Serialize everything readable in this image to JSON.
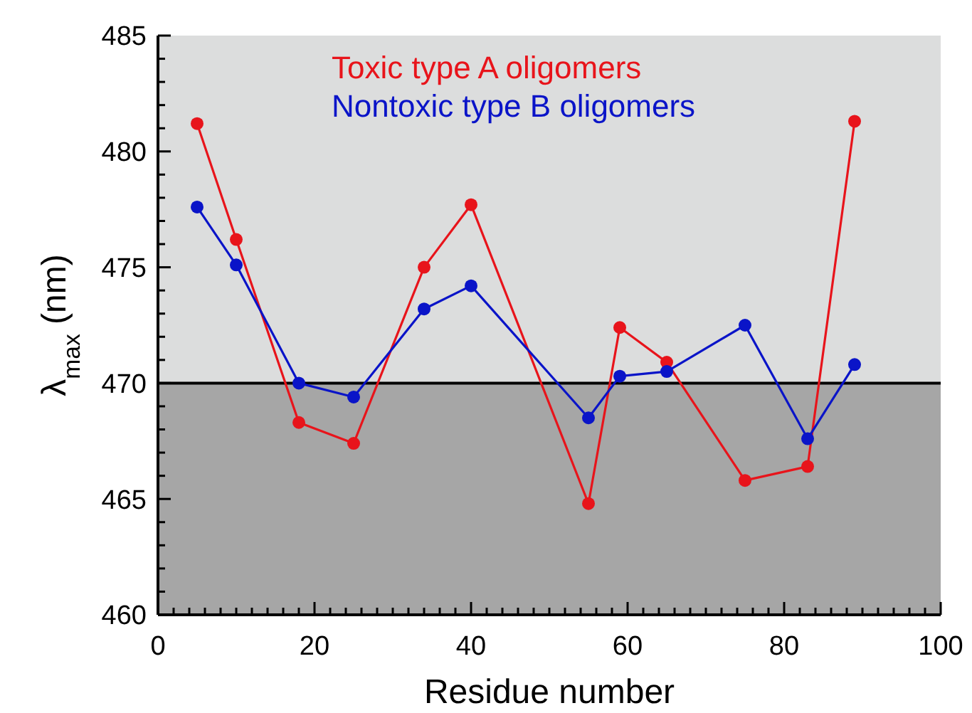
{
  "chart_data": {
    "type": "line",
    "xlabel": "Residue number",
    "ylabel": "λ$_{max}$ (nm)",
    "xlim": [
      0,
      100
    ],
    "xticks": [
      0,
      {
        "value": 2,
        "label": null
      },
      {
        "value": 4,
        "label": null
      },
      {
        "value": 6,
        "label": null
      },
      {
        "value": 8,
        "label": null
      },
      {
        "value": 10,
        "label": null
      },
      {
        "value": 12,
        "label": null
      },
      {
        "value": 14,
        "label": null
      },
      {
        "value": 16,
        "label": null
      },
      {
        "value": 18,
        "label": null
      },
      20,
      {
        "value": 22,
        "label": null
      },
      {
        "value": 24,
        "label": null
      },
      {
        "value": 26,
        "label": null
      },
      {
        "value": 28,
        "label": null
      },
      {
        "value": 30,
        "label": null
      },
      {
        "value": 32,
        "label": null
      },
      {
        "value": 34,
        "label": null
      },
      {
        "value": 36,
        "label": null
      },
      {
        "value": 38,
        "label": null
      },
      40,
      {
        "value": 42,
        "label": null
      },
      {
        "value": 44,
        "label": null
      },
      {
        "value": 46,
        "label": null
      },
      {
        "value": 48,
        "label": null
      },
      {
        "value": 50,
        "label": null
      },
      {
        "value": 52,
        "label": null
      },
      {
        "value": 54,
        "label": null
      },
      {
        "value": 56,
        "label": null
      },
      {
        "value": 58,
        "label": null
      },
      60,
      {
        "value": 62,
        "label": null
      },
      {
        "value": 64,
        "label": null
      },
      {
        "value": 66,
        "label": null
      },
      {
        "value": 68,
        "label": null
      },
      {
        "value": 70,
        "label": null
      },
      {
        "value": 72,
        "label": null
      },
      {
        "value": 74,
        "label": null
      },
      {
        "value": 76,
        "label": null
      },
      {
        "value": 78,
        "label": null
      },
      80,
      {
        "value": 82,
        "label": null
      },
      {
        "value": 84,
        "label": null
      },
      {
        "value": 86,
        "label": null
      },
      {
        "value": 88,
        "label": null
      },
      {
        "value": 90,
        "label": null
      },
      {
        "value": 92,
        "label": null
      },
      {
        "value": 94,
        "label": null
      },
      {
        "value": 96,
        "label": null
      },
      {
        "value": 98,
        "label": null
      },
      100
    ],
    "ylim": [
      460,
      485
    ],
    "yticks": [
      460,
      {
        "value": 461,
        "label": null
      },
      {
        "value": 462,
        "label": null
      },
      {
        "value": 463,
        "label": null
      },
      {
        "value": 464,
        "label": null
      },
      465,
      {
        "value": 466,
        "label": null
      },
      {
        "value": 467,
        "label": null
      },
      {
        "value": 468,
        "label": null
      },
      {
        "value": 469,
        "label": null
      },
      470,
      {
        "value": 471,
        "label": null
      },
      {
        "value": 472,
        "label": null
      },
      {
        "value": 473,
        "label": null
      },
      {
        "value": 474,
        "label": null
      },
      475,
      {
        "value": 476,
        "label": null
      },
      {
        "value": 477,
        "label": null
      },
      {
        "value": 478,
        "label": null
      },
      {
        "value": 479,
        "label": null
      },
      480,
      {
        "value": 481,
        "label": null
      },
      {
        "value": 482,
        "label": null
      },
      {
        "value": 483,
        "label": null
      },
      {
        "value": 484,
        "label": null
      },
      485
    ],
    "x": [
      5,
      10,
      18,
      25,
      34,
      40,
      55,
      59,
      65,
      75,
      83,
      89
    ],
    "series": [
      {
        "name": "Toxic type A oligomers",
        "color": "#e8141b",
        "values": [
          481.2,
          476.2,
          468.3,
          467.4,
          475.0,
          477.7,
          464.8,
          472.4,
          470.9,
          465.8,
          466.4,
          481.3
        ]
      },
      {
        "name": "Nontoxic type B oligomers",
        "color": "#0a14c8",
        "values": [
          477.6,
          475.1,
          470.0,
          469.4,
          473.2,
          474.2,
          468.5,
          470.3,
          470.5,
          472.5,
          467.6,
          470.8
        ]
      }
    ],
    "bands": [
      {
        "axis": "y",
        "from": 470,
        "to": 485,
        "color": "#dcdddd"
      },
      {
        "axis": "y",
        "from": 460,
        "to": 470,
        "color": "#a6a6a6"
      }
    ],
    "ref_lines": [
      {
        "axis": "y",
        "value": 470,
        "color": "#000000"
      }
    ],
    "marker": "circle",
    "legend": "top",
    "grid": false
  }
}
